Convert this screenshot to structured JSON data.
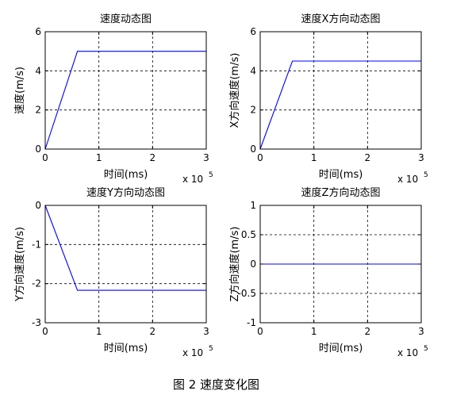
{
  "figure": {
    "caption": "图 2  速度变化图"
  },
  "chart_data": [
    {
      "type": "line",
      "title": "速度动态图",
      "xlabel": "时间(ms)",
      "ylabel": "速度(m/s)",
      "x_multiplier": "x 10",
      "x_exponent": "5",
      "xlim": [
        0,
        3
      ],
      "ylim": [
        0,
        6
      ],
      "xticks": [
        0,
        1,
        2,
        3
      ],
      "xtick_labels": [
        "0",
        "1",
        "2",
        "3"
      ],
      "yticks": [
        0,
        2,
        4,
        6
      ],
      "ytick_labels": [
        "0",
        "2",
        "4",
        "6"
      ],
      "grid": true,
      "line_color": "#0000ff",
      "series": [
        {
          "x": [
            0,
            0.6,
            3
          ],
          "y": [
            0,
            5,
            5
          ]
        }
      ]
    },
    {
      "type": "line",
      "title": "速度X方向动态图",
      "xlabel": "时间(ms)",
      "ylabel": "X方向速度(m/s)",
      "x_multiplier": "x 10",
      "x_exponent": "5",
      "xlim": [
        0,
        3
      ],
      "ylim": [
        0,
        6
      ],
      "xticks": [
        0,
        1,
        2,
        3
      ],
      "xtick_labels": [
        "0",
        "1",
        "2",
        "3"
      ],
      "yticks": [
        0,
        2,
        4,
        6
      ],
      "ytick_labels": [
        "0",
        "2",
        "4",
        "6"
      ],
      "grid": true,
      "line_color": "#0000ff",
      "series": [
        {
          "x": [
            0,
            0.6,
            3
          ],
          "y": [
            0,
            4.5,
            4.5
          ]
        }
      ]
    },
    {
      "type": "line",
      "title": "速度Y方向动态图",
      "xlabel": "时间(ms)",
      "ylabel": "Y方向速度(m/s)",
      "x_multiplier": "x 10",
      "x_exponent": "5",
      "xlim": [
        0,
        3
      ],
      "ylim": [
        -3,
        0
      ],
      "xticks": [
        0,
        1,
        2,
        3
      ],
      "xtick_labels": [
        "0",
        "1",
        "2",
        "3"
      ],
      "yticks": [
        -3,
        -2,
        -1,
        0
      ],
      "ytick_labels": [
        "-3",
        "-2",
        "-1",
        "0"
      ],
      "grid": true,
      "line_color": "#0000ff",
      "series": [
        {
          "x": [
            0,
            0.6,
            3
          ],
          "y": [
            0,
            -2.17,
            -2.17
          ]
        }
      ]
    },
    {
      "type": "line",
      "title": "速度Z方向动态图",
      "xlabel": "时间(ms)",
      "ylabel": "Z方向速度(m/s)",
      "x_multiplier": "x 10",
      "x_exponent": "5",
      "xlim": [
        0,
        3
      ],
      "ylim": [
        -1,
        1
      ],
      "xticks": [
        0,
        1,
        2,
        3
      ],
      "xtick_labels": [
        "0",
        "1",
        "2",
        "3"
      ],
      "yticks": [
        -1,
        -0.5,
        0,
        0.5,
        1
      ],
      "ytick_labels": [
        "-1",
        "-0.5",
        "0",
        "0.5",
        "1"
      ],
      "grid": true,
      "line_color": "#0000ff",
      "series": [
        {
          "x": [
            0,
            3
          ],
          "y": [
            0,
            0
          ]
        }
      ]
    }
  ]
}
